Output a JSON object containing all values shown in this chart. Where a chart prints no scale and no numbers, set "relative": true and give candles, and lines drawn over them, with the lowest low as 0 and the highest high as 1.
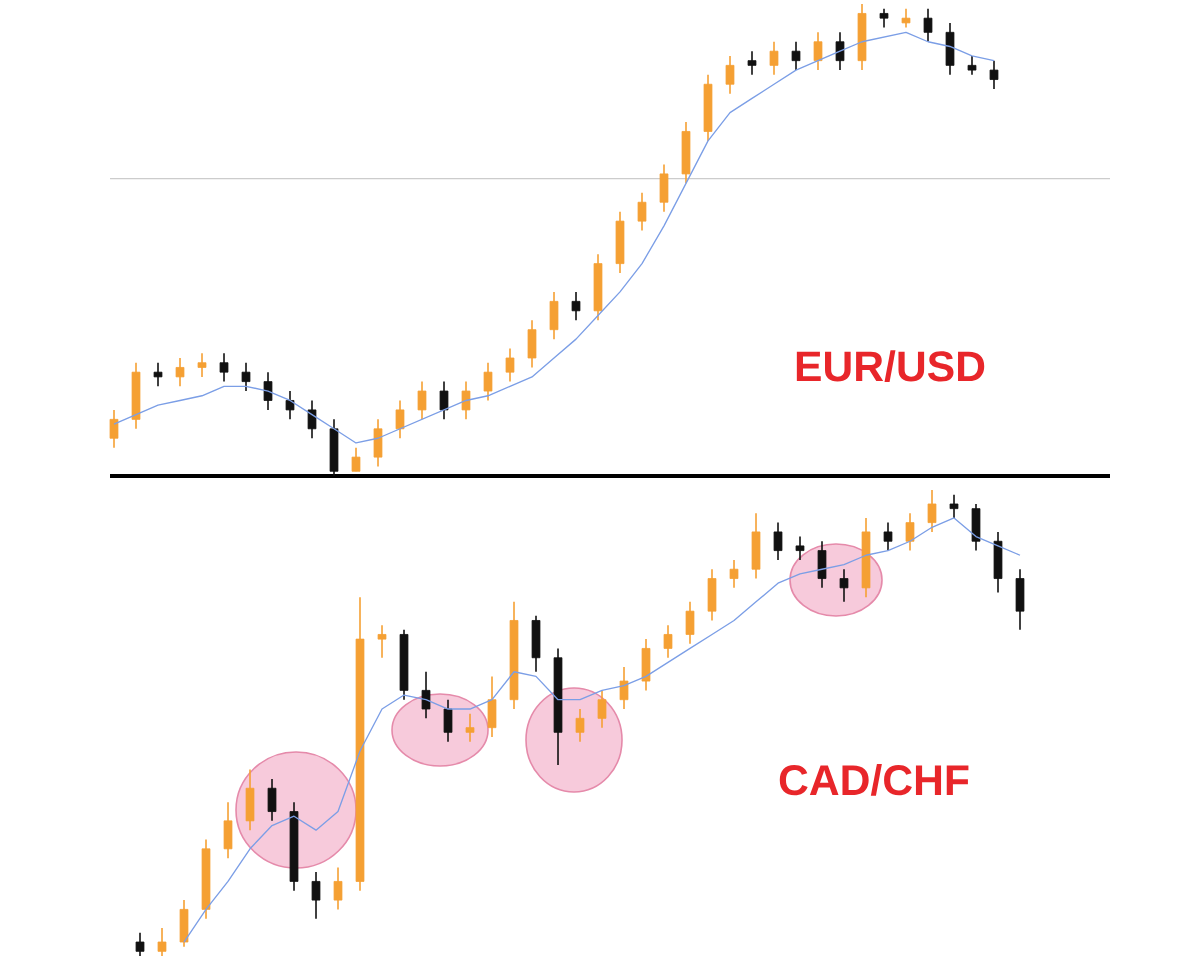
{
  "chart_data": [
    {
      "type": "candlestick",
      "title": "EUR/USD",
      "relative": true,
      "categories": [
        null,
        null,
        null,
        null,
        null,
        null,
        null,
        null,
        null,
        null,
        null,
        null,
        null,
        null,
        null,
        null,
        null,
        null,
        null,
        null,
        null,
        null,
        null,
        null,
        null,
        null,
        null,
        null,
        null,
        null,
        null,
        null,
        null,
        null,
        null,
        null,
        null,
        null,
        null,
        null,
        null
      ],
      "ohlc": [
        [
          0.08,
          0.14,
          0.06,
          0.12
        ],
        [
          0.12,
          0.24,
          0.1,
          0.22
        ],
        [
          0.22,
          0.24,
          0.19,
          0.21
        ],
        [
          0.21,
          0.25,
          0.19,
          0.23
        ],
        [
          0.23,
          0.26,
          0.21,
          0.24
        ],
        [
          0.24,
          0.26,
          0.2,
          0.22
        ],
        [
          0.22,
          0.24,
          0.18,
          0.2
        ],
        [
          0.2,
          0.22,
          0.14,
          0.16
        ],
        [
          0.16,
          0.18,
          0.12,
          0.14
        ],
        [
          0.14,
          0.16,
          0.08,
          0.1
        ],
        [
          0.1,
          0.12,
          0.0,
          0.01
        ],
        [
          0.01,
          0.06,
          0.01,
          0.04
        ],
        [
          0.04,
          0.12,
          0.02,
          0.1
        ],
        [
          0.1,
          0.16,
          0.08,
          0.14
        ],
        [
          0.14,
          0.2,
          0.12,
          0.18
        ],
        [
          0.18,
          0.2,
          0.12,
          0.14
        ],
        [
          0.14,
          0.2,
          0.12,
          0.18
        ],
        [
          0.18,
          0.24,
          0.16,
          0.22
        ],
        [
          0.22,
          0.27,
          0.2,
          0.25
        ],
        [
          0.25,
          0.33,
          0.23,
          0.31
        ],
        [
          0.31,
          0.39,
          0.29,
          0.37
        ],
        [
          0.37,
          0.39,
          0.33,
          0.35
        ],
        [
          0.35,
          0.47,
          0.33,
          0.45
        ],
        [
          0.45,
          0.56,
          0.43,
          0.54
        ],
        [
          0.54,
          0.6,
          0.52,
          0.58
        ],
        [
          0.58,
          0.66,
          0.56,
          0.64
        ],
        [
          0.64,
          0.75,
          0.62,
          0.73
        ],
        [
          0.73,
          0.85,
          0.71,
          0.83
        ],
        [
          0.83,
          0.89,
          0.81,
          0.87
        ],
        [
          0.88,
          0.9,
          0.85,
          0.87
        ],
        [
          0.87,
          0.92,
          0.85,
          0.9
        ],
        [
          0.9,
          0.92,
          0.86,
          0.88
        ],
        [
          0.88,
          0.94,
          0.86,
          0.92
        ],
        [
          0.92,
          0.94,
          0.86,
          0.88
        ],
        [
          0.88,
          1.0,
          0.86,
          0.98
        ],
        [
          0.98,
          0.99,
          0.95,
          0.97
        ],
        [
          0.96,
          0.99,
          0.95,
          0.97
        ],
        [
          0.97,
          0.99,
          0.92,
          0.94
        ],
        [
          0.94,
          0.96,
          0.85,
          0.87
        ],
        [
          0.87,
          0.89,
          0.85,
          0.86
        ],
        [
          0.86,
          0.88,
          0.82,
          0.84
        ]
      ],
      "colors": [
        "#f5a033",
        "#f5a033",
        "#111111",
        "#f5a033",
        "#f5a033",
        "#111111",
        "#111111",
        "#111111",
        "#111111",
        "#111111",
        "#111111",
        "#f5a033",
        "#f5a033",
        "#f5a033",
        "#f5a033",
        "#111111",
        "#f5a033",
        "#f5a033",
        "#f5a033",
        "#f5a033",
        "#f5a033",
        "#111111",
        "#f5a033",
        "#f5a033",
        "#f5a033",
        "#f5a033",
        "#f5a033",
        "#f5a033",
        "#f5a033",
        "#111111",
        "#f5a033",
        "#111111",
        "#f5a033",
        "#111111",
        "#f5a033",
        "#111111",
        "#f5a033",
        "#111111",
        "#111111",
        "#111111",
        "#111111"
      ],
      "series": [
        {
          "type": "line",
          "color": "#7b9ee6",
          "values": [
            0.11,
            0.13,
            0.15,
            0.16,
            0.17,
            0.19,
            0.19,
            0.18,
            0.16,
            0.13,
            0.1,
            0.07,
            0.08,
            0.1,
            0.12,
            0.14,
            0.16,
            0.17,
            0.19,
            0.21,
            0.25,
            0.29,
            0.34,
            0.39,
            0.45,
            0.53,
            0.62,
            0.71,
            0.77,
            0.8,
            0.83,
            0.86,
            0.88,
            0.9,
            0.92,
            0.93,
            0.94,
            0.92,
            0.91,
            0.89,
            0.88
          ]
        }
      ],
      "ref_lines": [
        {
          "axis": "y",
          "value": 0.63,
          "color": "#cccccc"
        },
        {
          "axis": "y",
          "value": 0,
          "color": "#000000"
        }
      ]
    },
    {
      "type": "candlestick",
      "title": "CAD/CHF",
      "relative": true,
      "categories": [
        null,
        null,
        null,
        null,
        null,
        null,
        null,
        null,
        null,
        null,
        null,
        null,
        null,
        null,
        null,
        null,
        null,
        null,
        null,
        null,
        null,
        null,
        null,
        null,
        null,
        null,
        null,
        null,
        null,
        null,
        null,
        null,
        null,
        null,
        null,
        null,
        null,
        null,
        null,
        null,
        null
      ],
      "ohlc": [
        [
          0.03,
          0.05,
          0.0,
          0.01
        ],
        [
          0.01,
          0.06,
          0.0,
          0.03
        ],
        [
          0.03,
          0.12,
          0.02,
          0.1
        ],
        [
          0.1,
          0.25,
          0.08,
          0.23
        ],
        [
          0.23,
          0.33,
          0.21,
          0.29
        ],
        [
          0.29,
          0.4,
          0.27,
          0.36
        ],
        [
          0.36,
          0.38,
          0.29,
          0.31
        ],
        [
          0.31,
          0.33,
          0.14,
          0.16
        ],
        [
          0.16,
          0.18,
          0.08,
          0.12
        ],
        [
          0.12,
          0.19,
          0.1,
          0.16
        ],
        [
          0.16,
          0.77,
          0.14,
          0.68
        ],
        [
          0.68,
          0.71,
          0.64,
          0.69
        ],
        [
          0.69,
          0.7,
          0.55,
          0.57
        ],
        [
          0.57,
          0.61,
          0.51,
          0.53
        ],
        [
          0.53,
          0.55,
          0.46,
          0.48
        ],
        [
          0.48,
          0.52,
          0.46,
          0.49
        ],
        [
          0.49,
          0.6,
          0.47,
          0.55
        ],
        [
          0.55,
          0.76,
          0.53,
          0.72
        ],
        [
          0.72,
          0.73,
          0.61,
          0.64
        ],
        [
          0.64,
          0.66,
          0.41,
          0.48
        ],
        [
          0.48,
          0.53,
          0.46,
          0.51
        ],
        [
          0.51,
          0.57,
          0.49,
          0.55
        ],
        [
          0.55,
          0.62,
          0.53,
          0.59
        ],
        [
          0.59,
          0.68,
          0.57,
          0.66
        ],
        [
          0.66,
          0.71,
          0.64,
          0.69
        ],
        [
          0.69,
          0.76,
          0.67,
          0.74
        ],
        [
          0.74,
          0.83,
          0.72,
          0.81
        ],
        [
          0.81,
          0.85,
          0.79,
          0.83
        ],
        [
          0.83,
          0.95,
          0.81,
          0.91
        ],
        [
          0.91,
          0.93,
          0.85,
          0.87
        ],
        [
          0.88,
          0.9,
          0.85,
          0.87
        ],
        [
          0.87,
          0.89,
          0.79,
          0.81
        ],
        [
          0.81,
          0.83,
          0.76,
          0.79
        ],
        [
          0.79,
          0.94,
          0.77,
          0.91
        ],
        [
          0.91,
          0.93,
          0.87,
          0.89
        ],
        [
          0.89,
          0.95,
          0.87,
          0.93
        ],
        [
          0.93,
          1.0,
          0.91,
          0.97
        ],
        [
          0.97,
          0.99,
          0.94,
          0.96
        ],
        [
          0.96,
          0.97,
          0.87,
          0.89
        ],
        [
          0.89,
          0.91,
          0.78,
          0.81
        ],
        [
          0.81,
          0.83,
          0.7,
          0.74
        ]
      ],
      "colors": [
        "#111111",
        "#f5a033",
        "#f5a033",
        "#f5a033",
        "#f5a033",
        "#f5a033",
        "#111111",
        "#111111",
        "#111111",
        "#f5a033",
        "#f5a033",
        "#f5a033",
        "#111111",
        "#111111",
        "#111111",
        "#f5a033",
        "#f5a033",
        "#f5a033",
        "#111111",
        "#111111",
        "#f5a033",
        "#f5a033",
        "#f5a033",
        "#f5a033",
        "#f5a033",
        "#f5a033",
        "#f5a033",
        "#f5a033",
        "#f5a033",
        "#111111",
        "#111111",
        "#111111",
        "#111111",
        "#f5a033",
        "#111111",
        "#f5a033",
        "#f5a033",
        "#111111",
        "#111111",
        "#111111",
        "#111111"
      ],
      "series": [
        {
          "type": "line",
          "color": "#7b9ee6",
          "values": [
            null,
            null,
            0.03,
            0.1,
            0.16,
            0.23,
            0.28,
            0.3,
            0.27,
            0.31,
            0.44,
            0.53,
            0.56,
            0.55,
            0.53,
            0.53,
            0.55,
            0.61,
            0.6,
            0.55,
            0.55,
            0.57,
            0.58,
            0.6,
            0.63,
            0.66,
            0.69,
            0.72,
            0.76,
            0.8,
            0.82,
            0.83,
            0.84,
            0.86,
            0.87,
            0.89,
            0.92,
            0.94,
            0.9,
            0.88,
            0.86
          ]
        }
      ]
    }
  ]
}
